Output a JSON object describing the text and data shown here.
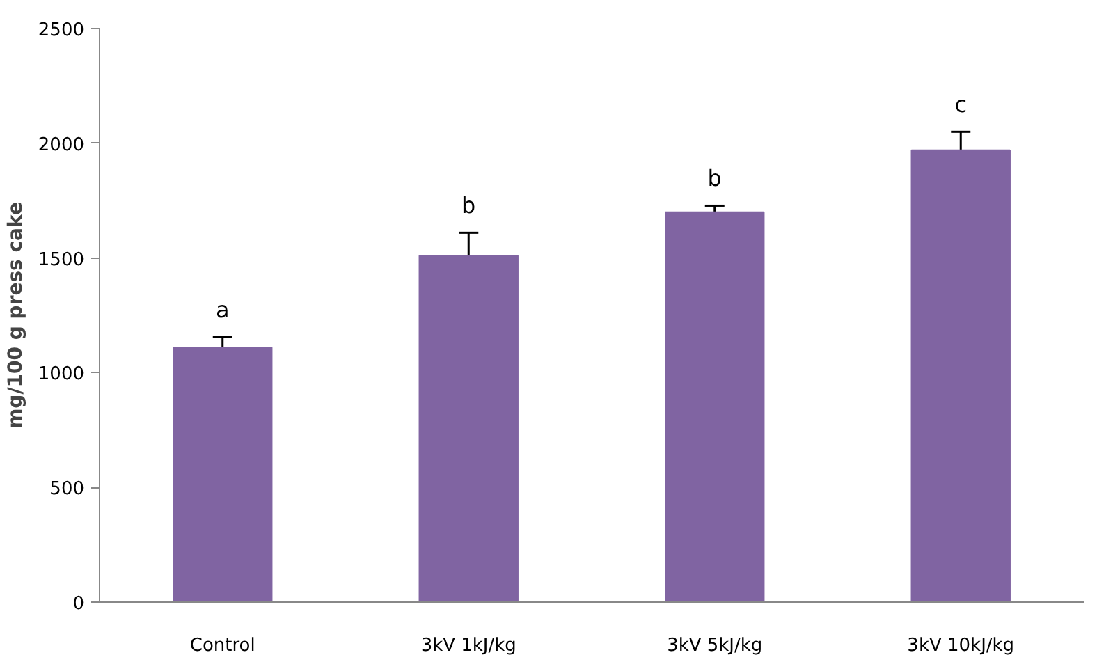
{
  "chart_data": {
    "type": "bar",
    "ylabel": "mg/100 g press cake",
    "categories": [
      "Control",
      "3kV 1kJ/kg",
      "3kV 5kJ/kg",
      "3kV 10kJ/kg"
    ],
    "values": [
      1110,
      1510,
      1700,
      1970
    ],
    "errors": [
      45,
      100,
      28,
      80
    ],
    "color": "#8064a2",
    "ylim": [
      0,
      2500
    ],
    "yticks": [
      0,
      500,
      1000,
      1500,
      2000,
      2500
    ],
    "grid": false,
    "annotations": [
      "a",
      "b",
      "b",
      "c"
    ]
  }
}
